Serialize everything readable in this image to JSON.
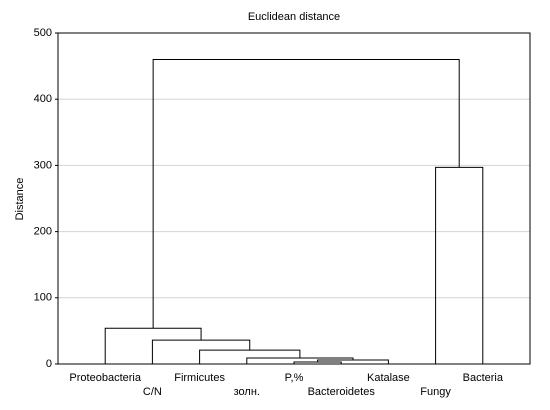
{
  "chart_data": {
    "type": "dendrogram",
    "title": "Euclidean distance",
    "y_label": "Distance",
    "categories": [
      "Proteobacteria",
      "C/N",
      "Firmicutes",
      "золн.",
      "P,%",
      "Bacteroidetes",
      "Katalase",
      "Fungy",
      "Bacteria"
    ],
    "merges": [
      {
        "children": [
          4,
          5
        ],
        "height": 3
      },
      {
        "children": [
          9,
          6
        ],
        "height": 6
      },
      {
        "children": [
          3,
          10
        ],
        "height": 9
      },
      {
        "children": [
          2,
          11
        ],
        "height": 21
      },
      {
        "children": [
          1,
          12
        ],
        "height": 36
      },
      {
        "children": [
          0,
          13
        ],
        "height": 54
      },
      {
        "children": [
          7,
          8
        ],
        "height": 297
      },
      {
        "children": [
          14,
          15
        ],
        "height": 460
      }
    ],
    "color": "#000000",
    "ylim": [
      0,
      500
    ],
    "yticks": [
      0,
      100,
      200,
      300,
      400,
      500
    ],
    "grid": true
  }
}
